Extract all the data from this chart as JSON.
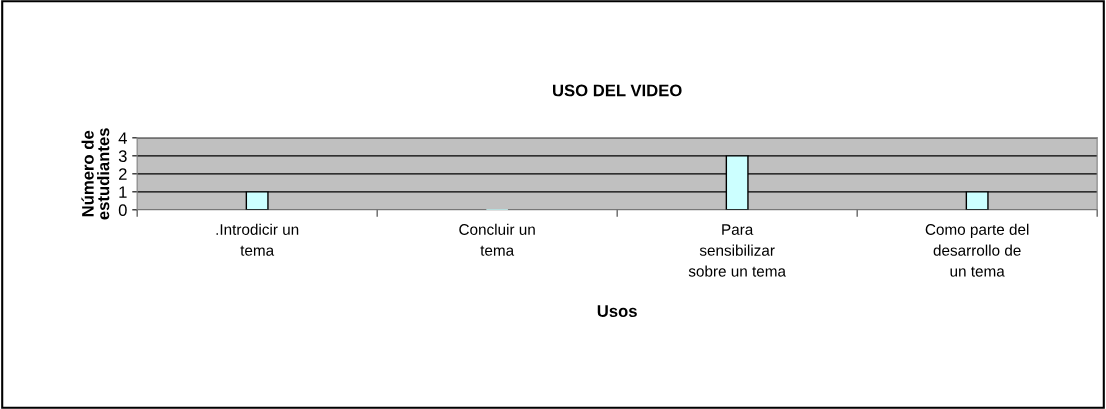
{
  "chart_data": {
    "type": "bar",
    "title": "USO DEL VIDEO",
    "xlabel": "Usos",
    "ylabel": "Número de estudiantes",
    "categories": [
      ".Introdicir un tema",
      "Concluir un tema",
      "Para sensibilizar sobre un tema",
      "Como parte del desarrollo de un tema"
    ],
    "values": [
      1,
      0,
      3,
      1
    ],
    "color": "#ccffff",
    "ylim": [
      0,
      4
    ],
    "yticks": [
      0,
      1,
      2,
      3,
      4
    ],
    "grid": "y",
    "legend": false
  }
}
